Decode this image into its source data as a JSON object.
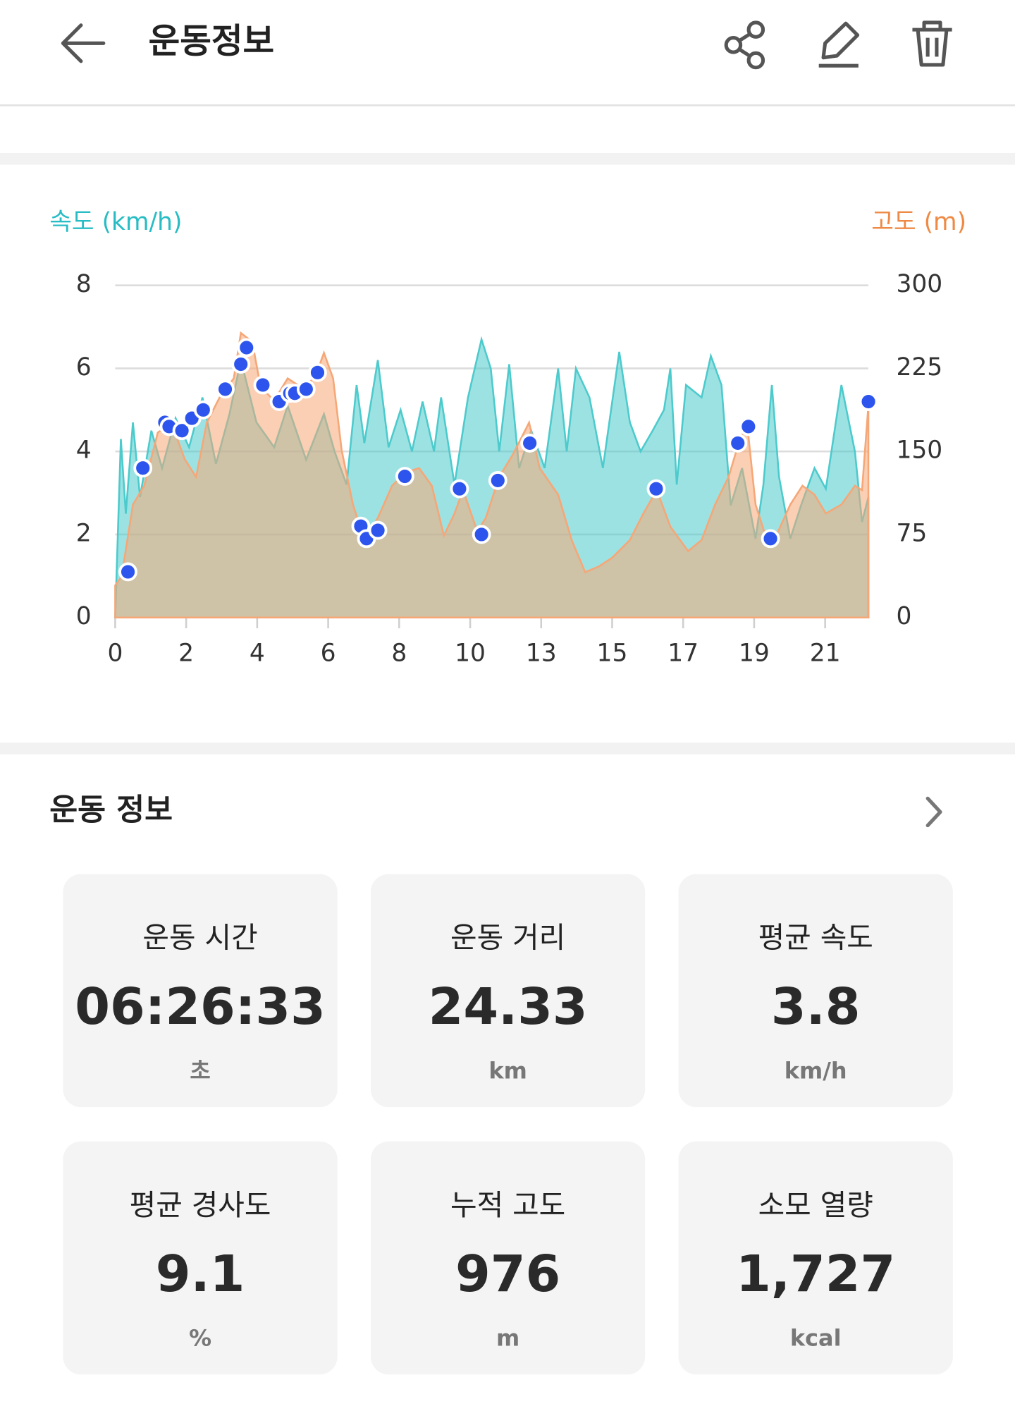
{
  "header": {
    "title": "운동정보"
  },
  "chart_data": {
    "type": "area",
    "y_label": "속도 (km/h)",
    "y2_label": "고도 (m)",
    "xlim": [
      0,
      10.61
    ],
    "xticks": [
      0,
      {
        "value": 1,
        "label": "2"
      },
      {
        "value": 2,
        "label": "4"
      },
      {
        "value": 3,
        "label": "6"
      },
      {
        "value": 4,
        "label": "8"
      },
      {
        "value": 5,
        "label": "10"
      },
      {
        "value": 6,
        "label": "13"
      },
      {
        "value": 7,
        "label": "15"
      },
      {
        "value": 8,
        "label": "17"
      },
      {
        "value": 9,
        "label": "19"
      },
      {
        "value": 10,
        "label": "21"
      }
    ],
    "ylim": [
      0,
      8
    ],
    "yticks": [
      0,
      2,
      4,
      6,
      8
    ],
    "y2lim": [
      0,
      300
    ],
    "y2ticks": [
      0,
      75,
      150,
      225,
      300
    ],
    "grid": true,
    "series": [
      {
        "type": "area",
        "color": "#4ccacc",
        "x": [
          0,
          0.08,
          0.15,
          0.25,
          0.35,
          0.51,
          0.66,
          0.85,
          1.04,
          1.23,
          1.42,
          1.61,
          1.77,
          1.99,
          2.24,
          2.43,
          2.69,
          2.94,
          3.09,
          3.26,
          3.4,
          3.51,
          3.7,
          3.85,
          4.02,
          4.18,
          4.33,
          4.49,
          4.59,
          4.78,
          4.97,
          5.16,
          5.29,
          5.41,
          5.55,
          5.69,
          5.86,
          6.05,
          6.24,
          6.36,
          6.49,
          6.68,
          6.87,
          7.1,
          7.25,
          7.4,
          7.57,
          7.73,
          7.82,
          7.91,
          8.04,
          8.26,
          8.39,
          8.54,
          8.67,
          8.83,
          9.02,
          9.13,
          9.25,
          9.35,
          9.51,
          9.66,
          9.85,
          10.01,
          10.23,
          10.42,
          10.52,
          10.61
        ],
        "values": [
          0,
          4.3,
          2.5,
          4.7,
          2.9,
          4.5,
          3.6,
          4.8,
          4.1,
          5.3,
          3.7,
          4.9,
          6.2,
          4.7,
          4.1,
          5.1,
          3.8,
          4.9,
          4.0,
          3.2,
          5.6,
          4.2,
          6.2,
          4.1,
          5.0,
          4.0,
          5.2,
          4.0,
          5.3,
          3.2,
          5.3,
          6.7,
          6.0,
          4.0,
          6.1,
          3.6,
          4.5,
          3.6,
          6.0,
          4.0,
          6.0,
          5.3,
          3.6,
          6.4,
          4.7,
          4.0,
          4.5,
          5.0,
          6.0,
          3.2,
          5.6,
          5.3,
          6.3,
          5.6,
          2.7,
          3.6,
          1.9,
          3.2,
          5.6,
          3.4,
          1.9,
          2.7,
          3.6,
          3.1,
          5.6,
          4.0,
          2.3,
          2.9
        ]
      },
      {
        "type": "area",
        "color": "#f5a777",
        "axis": "y2",
        "x": [
          0,
          0.09,
          0.25,
          0.41,
          0.6,
          0.79,
          0.98,
          1.14,
          1.29,
          1.48,
          1.67,
          1.77,
          1.93,
          2.05,
          2.24,
          2.43,
          2.62,
          2.81,
          2.94,
          3.07,
          3.19,
          3.35,
          3.51,
          3.7,
          3.9,
          4.09,
          4.28,
          4.46,
          4.63,
          4.78,
          4.9,
          5.1,
          5.22,
          5.41,
          5.6,
          5.83,
          5.98,
          6.24,
          6.43,
          6.62,
          6.81,
          7.0,
          7.25,
          7.44,
          7.63,
          7.82,
          8.07,
          8.26,
          8.45,
          8.64,
          8.77,
          8.9,
          9.02,
          9.18,
          9.34,
          9.51,
          9.68,
          9.85,
          10.01,
          10.23,
          10.42,
          10.52,
          10.61
        ],
        "values": [
          29,
          37,
          102,
          119,
          167,
          176,
          143,
          127,
          176,
          200,
          216,
          257,
          249,
          208,
          196,
          216,
          208,
          216,
          239,
          216,
          151,
          102,
          70,
          90,
          119,
          131,
          135,
          119,
          74,
          94,
          115,
          78,
          90,
          127,
          147,
          176,
          135,
          111,
          70,
          41,
          46,
          54,
          70,
          94,
          115,
          82,
          60,
          70,
          102,
          127,
          155,
          176,
          102,
          70,
          78,
          102,
          119,
          111,
          94,
          102,
          119,
          115,
          192
        ]
      },
      {
        "type": "scatter",
        "color": "#2d55ee",
        "x": [
          0.18,
          0.39,
          0.7,
          0.76,
          0.94,
          1.08,
          1.24,
          1.55,
          1.77,
          1.85,
          2.08,
          2.31,
          2.46,
          2.53,
          2.69,
          2.85,
          3.46,
          3.54,
          3.7,
          4.08,
          4.85,
          5.16,
          5.39,
          5.84,
          7.62,
          8.77,
          8.92,
          9.23,
          10.61
        ],
        "values": [
          1.1,
          3.6,
          4.7,
          4.6,
          4.5,
          4.8,
          5.0,
          5.5,
          6.1,
          6.5,
          5.6,
          5.2,
          5.4,
          5.4,
          5.5,
          5.9,
          2.2,
          1.9,
          2.1,
          3.4,
          3.1,
          2.0,
          3.3,
          4.2,
          3.1,
          4.2,
          4.6,
          1.9,
          5.2
        ]
      }
    ]
  },
  "stats": {
    "title": "운동 정보",
    "cards": [
      {
        "label": "운동 시간",
        "value": "06:26:33",
        "unit": "초"
      },
      {
        "label": "운동 거리",
        "value": "24.33",
        "unit": "km"
      },
      {
        "label": "평균 속도",
        "value": "3.8",
        "unit": "km/h"
      },
      {
        "label": "평균 경사도",
        "value": "9.1",
        "unit": "%"
      },
      {
        "label": "누적 고도",
        "value": "976",
        "unit": "m"
      },
      {
        "label": "소모 열량",
        "value": "1,727",
        "unit": "kcal"
      }
    ]
  }
}
